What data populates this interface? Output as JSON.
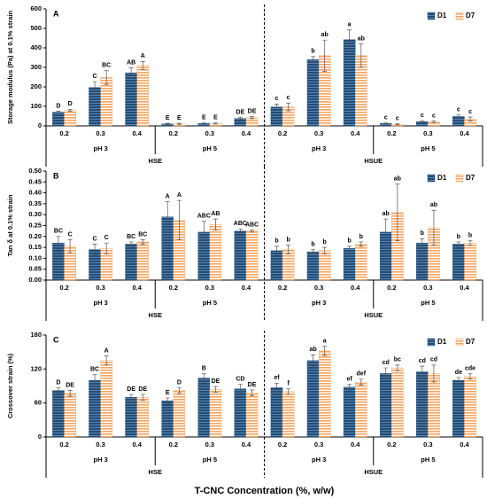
{
  "chart_data": [
    {
      "type": "bar",
      "panel": "A",
      "ylabel": "Storage modulus (Pa) at 0.1% strain",
      "categories": [
        "0.2",
        "0.3",
        "0.4",
        "0.2",
        "0.3",
        "0.4",
        "0.2",
        "0.3",
        "0.4",
        "0.2",
        "0.3",
        "0.4"
      ],
      "groups": [
        "pH 3",
        "pH 5",
        "pH 3",
        "pH 5"
      ],
      "supergroups": [
        "HSE",
        "HSUE"
      ],
      "ylim": [
        0,
        600
      ],
      "yticks": [
        0,
        100,
        200,
        300,
        400,
        500,
        600
      ],
      "series": [
        {
          "name": "D1",
          "color": "#1f4e79",
          "values": [
            70,
            197,
            272,
            10,
            12,
            38,
            97,
            340,
            442,
            12,
            22,
            48
          ],
          "errors": [
            5,
            30,
            25,
            3,
            3,
            5,
            15,
            15,
            50,
            3,
            5,
            8
          ],
          "letters": [
            "D",
            "C",
            "AB",
            "E",
            "E",
            "DE",
            "c",
            "b",
            "a",
            "c",
            "c",
            "c"
          ]
        },
        {
          "name": "D7",
          "color": "#f4a460",
          "values": [
            80,
            248,
            310,
            10,
            12,
            42,
            97,
            360,
            360,
            8,
            20,
            35
          ],
          "errors": [
            5,
            35,
            20,
            3,
            3,
            5,
            20,
            80,
            60,
            3,
            5,
            10
          ],
          "letters": [
            "D",
            "BC",
            "A",
            "E",
            "E",
            "DE",
            "c",
            "ab",
            "ab",
            "c",
            "c",
            "c"
          ]
        }
      ]
    },
    {
      "type": "bar",
      "panel": "B",
      "ylabel": "Tan δ at 0.1% strain",
      "categories": [
        "0.2",
        "0.3",
        "0.4",
        "0.2",
        "0.3",
        "0.4",
        "0.2",
        "0.3",
        "0.4",
        "0.2",
        "0.3",
        "0.4"
      ],
      "groups": [
        "pH 3",
        "pH 5",
        "pH 3",
        "pH 5"
      ],
      "supergroups": [
        "HSE",
        "HSUE"
      ],
      "ylim": [
        0,
        0.5
      ],
      "yticks": [
        {
          "value": 0,
          "label": "0.00"
        },
        {
          "value": 0.05,
          "label": "0.05"
        },
        {
          "value": 0.1,
          "label": "0.10"
        },
        {
          "value": 0.15,
          "label": "0.15"
        },
        {
          "value": 0.2,
          "label": "0.20"
        },
        {
          "value": 0.25,
          "label": "0.25"
        },
        {
          "value": 0.3,
          "label": "0.30"
        },
        {
          "value": 0.35,
          "label": "0.35"
        },
        {
          "value": 0.4,
          "label": "0.40"
        },
        {
          "value": 0.45,
          "label": "0.45"
        },
        {
          "value": 0.5,
          "label": "0.50"
        }
      ],
      "series": [
        {
          "name": "D1",
          "color": "#1f4e79",
          "values": [
            0.17,
            0.14,
            0.165,
            0.29,
            0.22,
            0.225,
            0.135,
            0.13,
            0.145,
            0.22,
            0.17,
            0.165
          ],
          "errors": [
            0.03,
            0.025,
            0.01,
            0.07,
            0.05,
            0.01,
            0.02,
            0.01,
            0.01,
            0.06,
            0.02,
            0.01
          ],
          "letters": [
            "BC",
            "C",
            "BC",
            "A",
            "ABC",
            "ABC",
            "b",
            "b",
            "b",
            "ab",
            "b",
            "b"
          ]
        },
        {
          "name": "D7",
          "color": "#f4a460",
          "values": [
            0.155,
            0.145,
            0.175,
            0.275,
            0.255,
            0.225,
            0.14,
            0.135,
            0.165,
            0.31,
            0.24,
            0.17
          ],
          "errors": [
            0.03,
            0.025,
            0.01,
            0.09,
            0.025,
            0.005,
            0.02,
            0.015,
            0.01,
            0.13,
            0.08,
            0.01
          ],
          "letters": [
            "C",
            "C",
            "BC",
            "A",
            "AB",
            "ABC",
            "b",
            "b",
            "b",
            "ab",
            "ab",
            "b"
          ]
        }
      ]
    },
    {
      "type": "bar",
      "panel": "C",
      "ylabel": "Crossover strain (%)",
      "xlabel": "T-CNC Concentration (%, w/w)",
      "categories": [
        "0.2",
        "0.3",
        "0.4",
        "0.2",
        "0.3",
        "0.4",
        "0.2",
        "0.3",
        "0.4",
        "0.2",
        "0.3",
        "0.4"
      ],
      "groups": [
        "pH 3",
        "pH 5",
        "pH 3",
        "pH 5"
      ],
      "supergroups": [
        "HSE",
        "HSUE"
      ],
      "ylim": [
        0,
        180
      ],
      "yticks": [
        0,
        60,
        120,
        180
      ],
      "series": [
        {
          "name": "D1",
          "color": "#1f4e79",
          "values": [
            82,
            100,
            70,
            64,
            104,
            85,
            87,
            135,
            88,
            112,
            115,
            100
          ],
          "errors": [
            5,
            10,
            5,
            5,
            8,
            8,
            8,
            10,
            5,
            10,
            10,
            5
          ],
          "letters": [
            "D",
            "BC",
            "DE",
            "E",
            "B",
            "CD",
            "ef",
            "ab",
            "ef",
            "cd",
            "cd",
            "de"
          ]
        },
        {
          "name": "D7",
          "color": "#f4a460",
          "values": [
            77,
            135,
            70,
            82,
            84,
            78,
            80,
            152,
            97,
            122,
            112,
            107
          ],
          "errors": [
            5,
            8,
            5,
            5,
            5,
            5,
            5,
            8,
            5,
            5,
            15,
            5
          ],
          "letters": [
            "DE",
            "A",
            "DE",
            "D",
            "DE",
            "DE",
            "f",
            "a",
            "def",
            "bc",
            "cd",
            "cde"
          ]
        }
      ]
    }
  ]
}
